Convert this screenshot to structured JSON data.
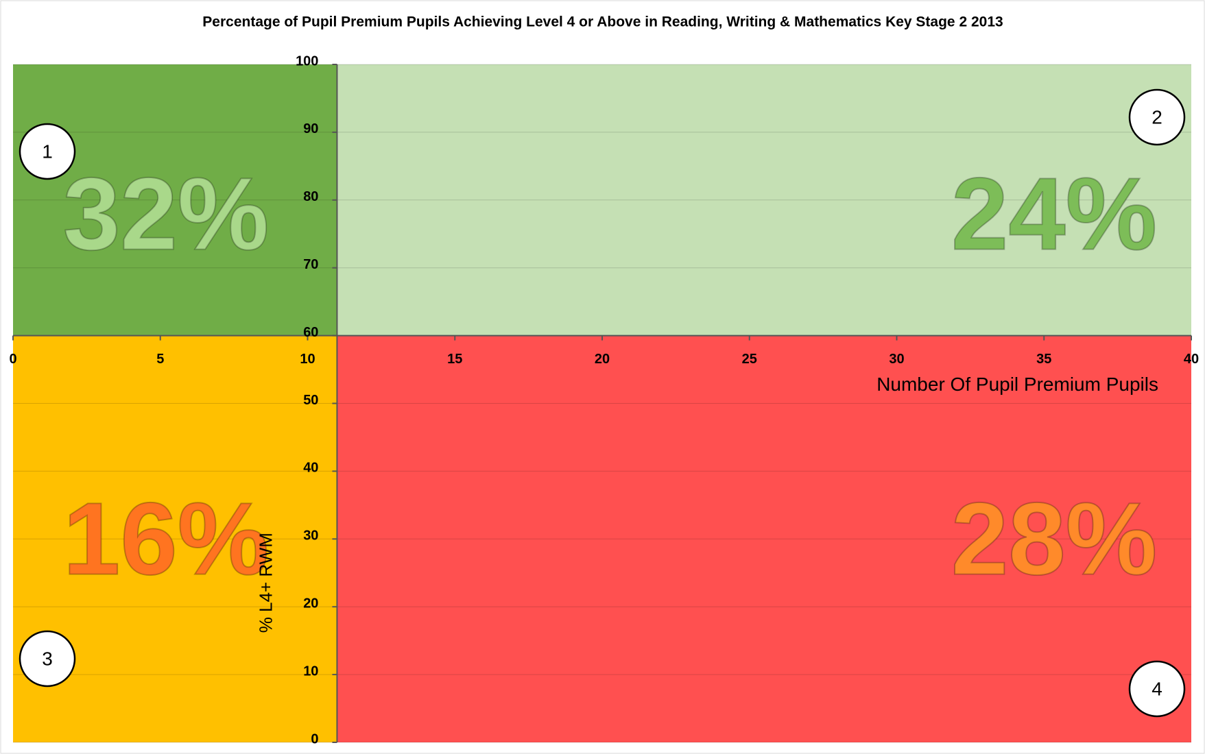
{
  "chart_data": {
    "type": "quadrant",
    "title": "Percentage of Pupil Premium Pupils Achieving Level 4 or Above in Reading, Writing & Mathematics Key Stage 2 2013",
    "x_label": "Number Of Pupil Premium Pupils",
    "y_label": "% L4+ RWM",
    "xlim": [
      0,
      40
    ],
    "xticks": [
      0,
      5,
      10,
      15,
      20,
      25,
      30,
      35,
      40
    ],
    "ylim": [
      0,
      100
    ],
    "yticks": [
      0,
      10,
      20,
      30,
      40,
      50,
      60,
      70,
      80,
      90,
      100
    ],
    "grid": true,
    "divider": {
      "x": 11,
      "y": 60
    },
    "quadrants": [
      {
        "name": "1",
        "corner": "top-left",
        "color": "#70ad47",
        "text_color": "#a9d88a",
        "value": 32,
        "value_label": "32%"
      },
      {
        "name": "2",
        "corner": "top-right",
        "color": "#c5e0b4",
        "text_color": "#7dbd58",
        "value": 24,
        "value_label": "24%"
      },
      {
        "name": "3",
        "corner": "bottom-left",
        "color": "#ffc000",
        "text_color": "#ff7420",
        "value": 16,
        "value_label": "16%"
      },
      {
        "name": "4",
        "corner": "bottom-right",
        "color": "#ff5050",
        "text_color": "#ff8a2a",
        "value": 28,
        "value_label": "28%"
      }
    ]
  }
}
